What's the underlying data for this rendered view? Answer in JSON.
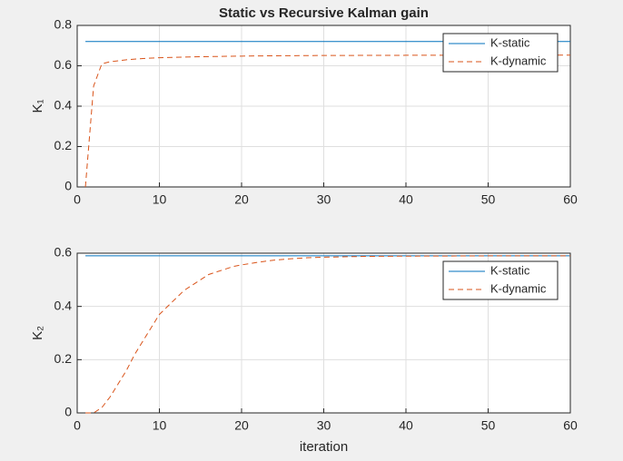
{
  "chart_data": [
    {
      "type": "line",
      "title": "Static vs Recursive Kalman gain",
      "ylabel": "K₁",
      "xlim": [
        0,
        60
      ],
      "xticks": [
        0,
        10,
        20,
        30,
        40,
        50,
        60
      ],
      "ylim": [
        0,
        0.8
      ],
      "yticks": [
        0,
        0.2,
        0.4,
        0.6,
        0.8
      ],
      "grid": true,
      "legend": "northeast",
      "series": [
        {
          "name": "K-static",
          "color": "#0072bd",
          "linestyle": "solid",
          "x": [
            1,
            60
          ],
          "values": [
            0.72,
            0.72
          ]
        },
        {
          "name": "K-dynamic",
          "color": "#d95319",
          "linestyle": "dashed",
          "x": [
            1,
            2,
            3,
            4,
            5,
            6,
            8,
            10,
            15,
            20,
            25,
            30,
            40,
            50,
            60
          ],
          "values": [
            0,
            0.5,
            0.61,
            0.62,
            0.625,
            0.63,
            0.636,
            0.64,
            0.645,
            0.648,
            0.65,
            0.651,
            0.652,
            0.653,
            0.653
          ]
        }
      ]
    },
    {
      "type": "line",
      "ylabel": "K₂",
      "xlabel": "iteration",
      "xlim": [
        0,
        60
      ],
      "xticks": [
        0,
        10,
        20,
        30,
        40,
        50,
        60
      ],
      "ylim": [
        0,
        0.6
      ],
      "yticks": [
        0,
        0.2,
        0.4,
        0.6
      ],
      "grid": true,
      "legend": "northeast",
      "series": [
        {
          "name": "K-static",
          "color": "#0072bd",
          "linestyle": "solid",
          "x": [
            1,
            60
          ],
          "values": [
            0.59,
            0.59
          ]
        },
        {
          "name": "K-dynamic",
          "color": "#d95319",
          "linestyle": "dashed",
          "x": [
            1,
            2,
            3,
            4,
            5,
            6,
            7,
            8,
            9,
            10,
            11,
            12,
            13,
            14,
            15,
            16,
            17,
            18,
            19,
            20,
            22,
            24,
            26,
            28,
            30,
            35,
            40,
            50,
            60
          ],
          "values": [
            0,
            0,
            0.02,
            0.06,
            0.11,
            0.16,
            0.22,
            0.27,
            0.32,
            0.37,
            0.4,
            0.43,
            0.46,
            0.48,
            0.5,
            0.52,
            0.53,
            0.54,
            0.55,
            0.556,
            0.566,
            0.574,
            0.579,
            0.583,
            0.585,
            0.588,
            0.589,
            0.59,
            0.59
          ]
        }
      ]
    }
  ]
}
